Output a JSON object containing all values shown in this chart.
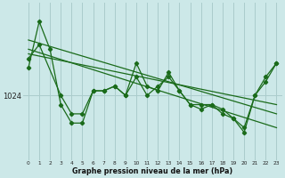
{
  "bg_color": "#cce8e8",
  "plot_bg_color": "#cce8e8",
  "line_color": "#1a6b1a",
  "grid_color": "#aacccc",
  "xlabel": "Graphe pression niveau de la mer (hPa)",
  "ylabel_tick": "1024",
  "x_ticks": [
    0,
    1,
    2,
    3,
    4,
    5,
    6,
    7,
    8,
    9,
    10,
    11,
    12,
    13,
    14,
    15,
    16,
    17,
    18,
    19,
    20,
    21,
    22,
    23
  ],
  "ylim": [
    1010,
    1044
  ],
  "xlim": [
    -0.5,
    23.5
  ],
  "y_ref": 1024,
  "series1": {
    "x": [
      0,
      1,
      2,
      3,
      4,
      5,
      6,
      7,
      8,
      9,
      10,
      11,
      12,
      13,
      14,
      15,
      16,
      17,
      18,
      19,
      20,
      21,
      22,
      23
    ],
    "y": [
      1030,
      1040,
      1034,
      1022,
      1018,
      1018,
      1025,
      1025,
      1026,
      1024,
      1031,
      1026,
      1025,
      1029,
      1025,
      1022,
      1022,
      1022,
      1020,
      1019,
      1016,
      1024,
      1027,
      1031
    ]
  },
  "series2": {
    "x": [
      0,
      1,
      3,
      4,
      5,
      6,
      7,
      8,
      9,
      10,
      11,
      12,
      13,
      14,
      15,
      16,
      17,
      18,
      19,
      20,
      21,
      22,
      23
    ],
    "y": [
      1032,
      1035,
      1024,
      1020,
      1020,
      1025,
      1025,
      1026,
      1024,
      1028,
      1024,
      1026,
      1028,
      1025,
      1022,
      1021,
      1022,
      1021,
      1019,
      1017,
      1024,
      1028,
      1031
    ]
  },
  "trend1_x": [
    0,
    23
  ],
  "trend1_y": [
    1033,
    1022
  ],
  "trend2_x": [
    0,
    23
  ],
  "trend2_y": [
    1034,
    1017
  ],
  "trend3_x": [
    0,
    23
  ],
  "trend3_y": [
    1036,
    1020
  ]
}
